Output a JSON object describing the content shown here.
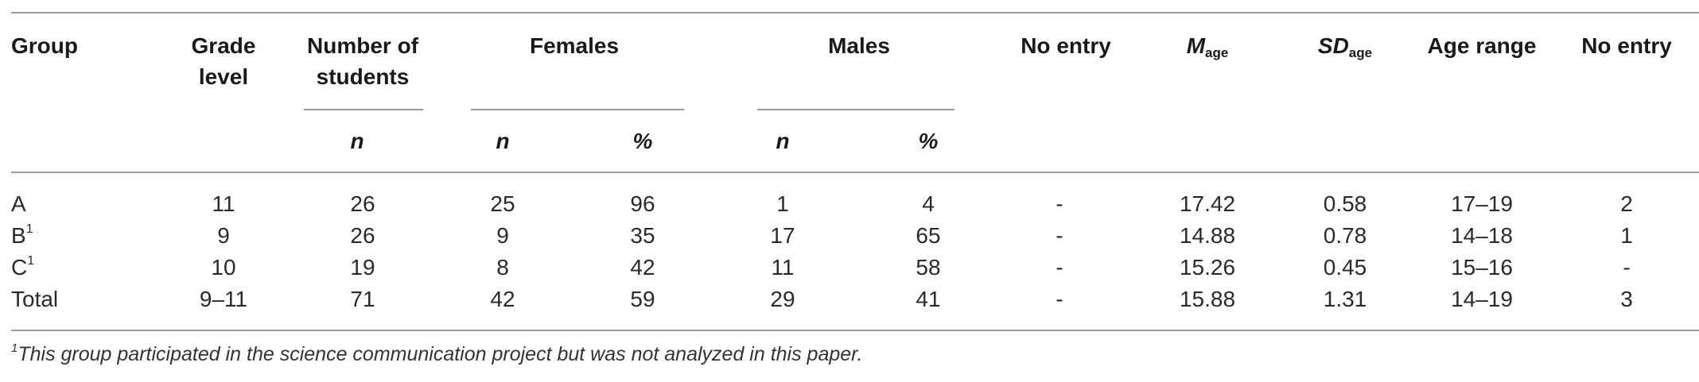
{
  "table": {
    "headers": {
      "group": "Group",
      "grade_level_line1": "Grade",
      "grade_level_line2": "level",
      "num_students_line1": "Number of",
      "num_students_line2": "students",
      "females": "Females",
      "males": "Males",
      "no_entry_1": "No entry",
      "m_age_main": "M",
      "m_age_sub": "age",
      "sd_age_main": "SD",
      "sd_age_sub": "age",
      "age_range": "Age range",
      "no_entry_2": "No entry"
    },
    "subheaders": {
      "students_n": "n",
      "females_n": "n",
      "females_pct": "%",
      "males_n": "n",
      "males_pct": "%"
    },
    "rows": [
      {
        "group": "A",
        "group_sup": "",
        "grade": "11",
        "n": "26",
        "f_n": "25",
        "f_pct": "96",
        "m_n": "1",
        "m_pct": "4",
        "no_entry": "-",
        "m_age": "17.42",
        "sd_age": "0.58",
        "age_range": "17–19",
        "no_entry2": "2"
      },
      {
        "group": "B",
        "group_sup": "1",
        "grade": "9",
        "n": "26",
        "f_n": "9",
        "f_pct": "35",
        "m_n": "17",
        "m_pct": "65",
        "no_entry": "-",
        "m_age": "14.88",
        "sd_age": "0.78",
        "age_range": "14–18",
        "no_entry2": "1"
      },
      {
        "group": "C",
        "group_sup": "1",
        "grade": "10",
        "n": "19",
        "f_n": "8",
        "f_pct": "42",
        "m_n": "11",
        "m_pct": "58",
        "no_entry": "-",
        "m_age": "15.26",
        "sd_age": "0.45",
        "age_range": "15–16",
        "no_entry2": "-"
      },
      {
        "group": "Total",
        "group_sup": "",
        "grade": "9–11",
        "n": "71",
        "f_n": "42",
        "f_pct": "59",
        "m_n": "29",
        "m_pct": "41",
        "no_entry": "-",
        "m_age": "15.88",
        "sd_age": "1.31",
        "age_range": "14–19",
        "no_entry2": "3"
      }
    ],
    "footnote_marker": "1",
    "footnote": "This group participated in the science communication project but was not analyzed in this paper."
  }
}
